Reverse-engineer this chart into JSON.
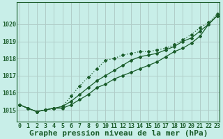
{
  "title": "Graphe pression niveau de la mer (hPa)",
  "bg_color": "#c8eee8",
  "grid_color": "#b0ccc8",
  "line_color": "#1a5c2a",
  "x_ticks": [
    0,
    1,
    2,
    3,
    4,
    5,
    6,
    7,
    8,
    9,
    10,
    11,
    12,
    13,
    14,
    15,
    16,
    17,
    18,
    19,
    20,
    21,
    22,
    23
  ],
  "y_ticks": [
    1015,
    1016,
    1017,
    1018,
    1019,
    1020
  ],
  "ylim": [
    1014.3,
    1021.3
  ],
  "xlim": [
    -0.3,
    23.3
  ],
  "line1_solid_up": [
    1015.3,
    1015.1,
    1014.9,
    1015.0,
    1015.1,
    1015.1,
    1015.3,
    1015.6,
    1015.9,
    1016.3,
    1016.5,
    1016.8,
    1017.0,
    1017.2,
    1017.4,
    1017.6,
    1017.8,
    1018.1,
    1018.4,
    1018.6,
    1018.9,
    1019.3,
    1020.0,
    1020.5
  ],
  "line2_dotted_high": [
    1015.3,
    1015.1,
    1014.9,
    1015.0,
    1015.1,
    1015.2,
    1015.8,
    1016.4,
    1016.9,
    1017.4,
    1017.9,
    1018.0,
    1018.2,
    1018.3,
    1018.4,
    1018.4,
    1018.5,
    1018.6,
    1018.8,
    1019.1,
    1019.4,
    1019.8,
    1020.1,
    1020.6
  ],
  "line3_solid_mid": [
    1015.3,
    1015.1,
    1014.9,
    1015.0,
    1015.1,
    1015.2,
    1015.5,
    1015.9,
    1016.3,
    1016.7,
    1017.0,
    1017.3,
    1017.6,
    1017.9,
    1018.1,
    1018.2,
    1018.3,
    1018.5,
    1018.7,
    1019.0,
    1019.2,
    1019.6,
    1020.0,
    1020.5
  ],
  "marker_style": "D",
  "marker_size": 2.0,
  "line_width": 0.9,
  "title_fontsize": 8,
  "tick_fontsize": 6
}
